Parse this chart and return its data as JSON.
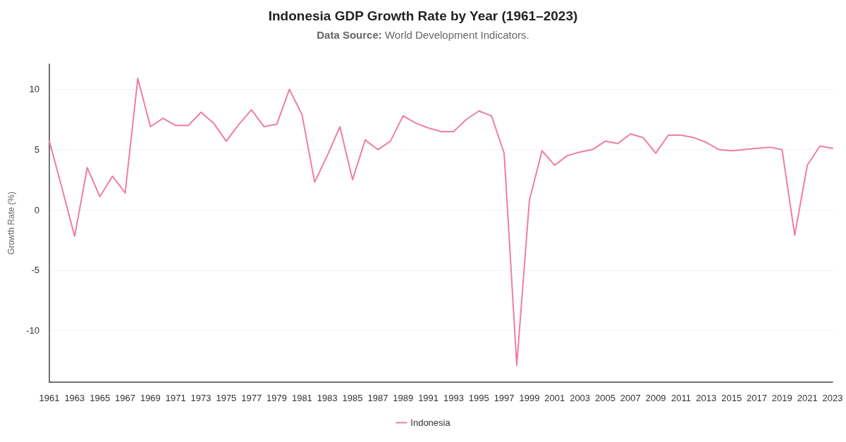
{
  "chart_data": {
    "type": "line",
    "title": "Indonesia GDP Growth Rate by Year (1961–2023)",
    "subtitle": "Data Source: World Development Indicators.",
    "ylabel": "Growth Rate (%)",
    "categories": [
      "1961",
      null,
      "1963",
      null,
      "1965",
      null,
      "1967",
      null,
      "1969",
      null,
      "1971",
      null,
      "1973",
      null,
      "1975",
      null,
      "1977",
      null,
      "1979",
      null,
      "1981",
      null,
      "1983",
      null,
      "1985",
      null,
      "1987",
      null,
      "1989",
      null,
      "1991",
      null,
      "1993",
      null,
      "1995",
      null,
      "1997",
      null,
      "1999",
      null,
      "2001",
      null,
      "2003",
      null,
      "2005",
      null,
      "2007",
      null,
      "2009",
      null,
      "2011",
      null,
      "2013",
      null,
      "2015",
      null,
      "2017",
      null,
      "2019",
      null,
      "2021",
      null,
      "2023"
    ],
    "series": [
      {
        "name": "Indonesia",
        "color": "#f07ca8",
        "values": [
          5.7,
          1.8,
          -2.2,
          3.5,
          1.1,
          2.8,
          1.4,
          10.9,
          6.9,
          7.6,
          7.0,
          7.0,
          8.1,
          7.2,
          5.7,
          7.1,
          8.3,
          6.9,
          7.1,
          10.0,
          7.9,
          2.3,
          4.5,
          6.9,
          2.5,
          5.8,
          5.0,
          5.7,
          7.8,
          7.2,
          6.8,
          6.5,
          6.5,
          7.5,
          8.2,
          7.8,
          4.7,
          -12.9,
          0.8,
          4.9,
          3.7,
          4.5,
          4.8,
          5.0,
          5.7,
          5.5,
          6.3,
          6.0,
          4.7,
          6.2,
          6.2,
          6.0,
          5.6,
          5.0,
          4.9,
          5.0,
          5.1,
          5.2,
          5.0,
          -2.1,
          3.7,
          5.3,
          5.1
        ]
      }
    ],
    "ylim": [
      -14.3,
      12.1
    ],
    "yticks": [
      -10,
      -5,
      0,
      5,
      10
    ],
    "grid": "y",
    "legend": "bottom",
    "marker": "none",
    "line_style": "solid"
  }
}
